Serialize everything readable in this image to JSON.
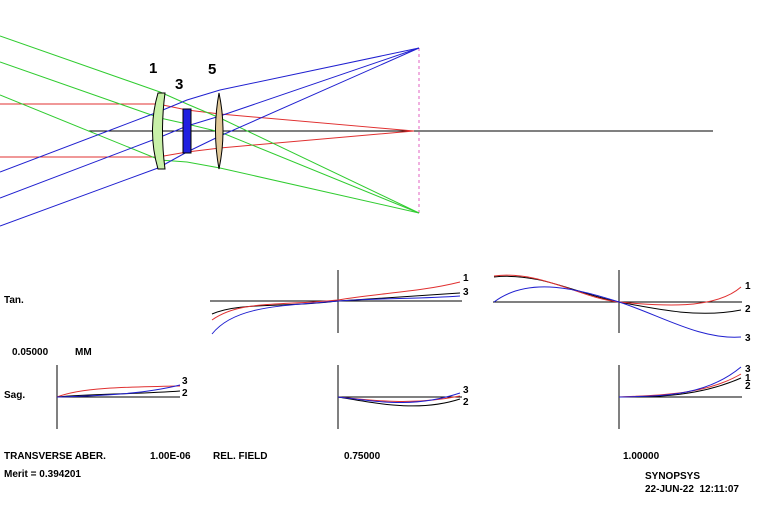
{
  "surface_labels": [
    "1",
    "3",
    "5"
  ],
  "row_labels": {
    "tangential": "Tan.",
    "sagittal": "Sag."
  },
  "scale": {
    "value": "0.05000",
    "unit": "MM"
  },
  "footer": {
    "transverse_aber": "TRANSVERSE ABER.",
    "wavelength": "1.00E-06",
    "rel_field": "REL. FIELD",
    "field_mid": "0.75000",
    "field_max": "1.00000",
    "merit": "Merit = 0.394201",
    "program": "SYNOPSYS",
    "datetime": "22-JUN-22  12:11:07"
  },
  "curve_labels": {
    "tan_mid": [
      "1",
      "3"
    ],
    "tan_full": [
      "1",
      "2",
      "3"
    ],
    "sag_axis": [
      "3",
      "2"
    ],
    "sag_mid": [
      "3",
      "2"
    ],
    "sag_full": [
      "3",
      "1",
      "2"
    ]
  },
  "colors": {
    "ray_axial": "#e03030",
    "ray_mid": "#30cc30",
    "ray_full": "#2020d0",
    "lens1_fill": "#c8f0a8",
    "lens3_fill": "#2020e0",
    "lens5_fill": "#e0c898",
    "curve_1": "#e03030",
    "curve_2": "#000000",
    "curve_3": "#2020d0"
  }
}
